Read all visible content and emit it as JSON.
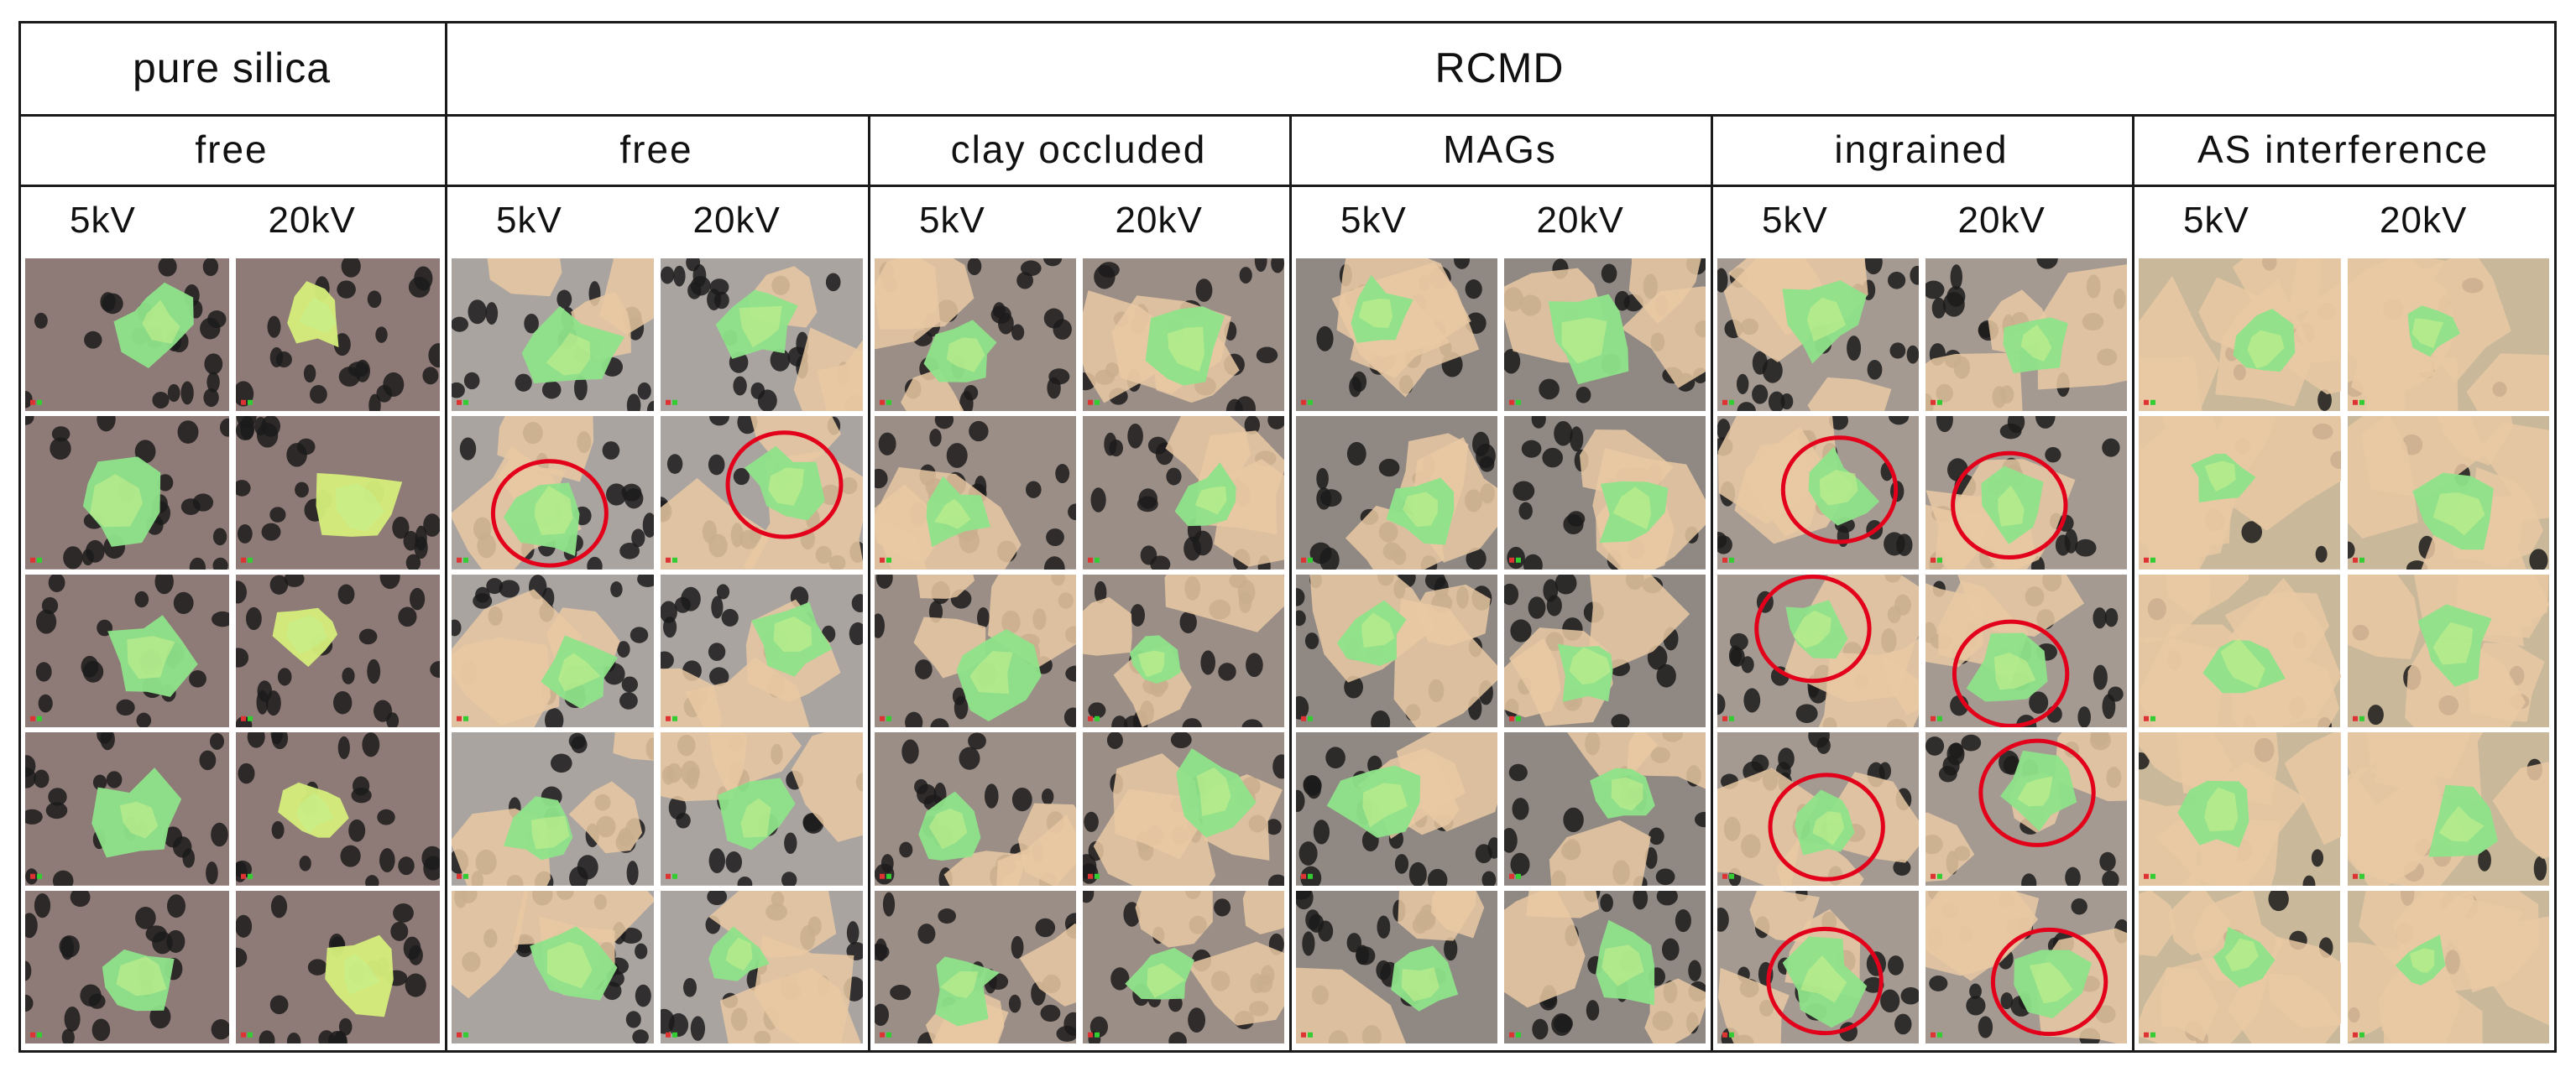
{
  "header": {
    "pure_silica": "pure silica",
    "rcmd": "RCMD"
  },
  "categories": [
    {
      "label": "free",
      "group": "pure silica"
    },
    {
      "label": "free",
      "group": "RCMD"
    },
    {
      "label": "clay occluded",
      "group": "RCMD"
    },
    {
      "label": "MAGs",
      "group": "RCMD"
    },
    {
      "label": "ingrained",
      "group": "RCMD"
    },
    {
      "label": "AS interference",
      "group": "RCMD"
    }
  ],
  "voltages": [
    "5kV",
    "20kV"
  ],
  "panels": {
    "rows": 5,
    "background_colors": [
      "#8e7b77",
      "#a9a4a0",
      "#9a8e86",
      "#8f8883",
      "#a49a92",
      "#c9b89a"
    ],
    "particle_color": "#8ee38a",
    "highlight_circle_color": "#e3001b",
    "highlighted": [
      {
        "category": 1,
        "row": 1,
        "voltage": "5kV"
      },
      {
        "category": 1,
        "row": 1,
        "voltage": "20kV"
      },
      {
        "category": 4,
        "row": 1,
        "voltage": "5kV"
      },
      {
        "category": 4,
        "row": 1,
        "voltage": "20kV"
      },
      {
        "category": 4,
        "row": 2,
        "voltage": "5kV"
      },
      {
        "category": 4,
        "row": 2,
        "voltage": "20kV"
      },
      {
        "category": 4,
        "row": 3,
        "voltage": "5kV"
      },
      {
        "category": 4,
        "row": 3,
        "voltage": "20kV"
      },
      {
        "category": 4,
        "row": 4,
        "voltage": "5kV"
      },
      {
        "category": 4,
        "row": 4,
        "voltage": "20kV"
      }
    ]
  }
}
